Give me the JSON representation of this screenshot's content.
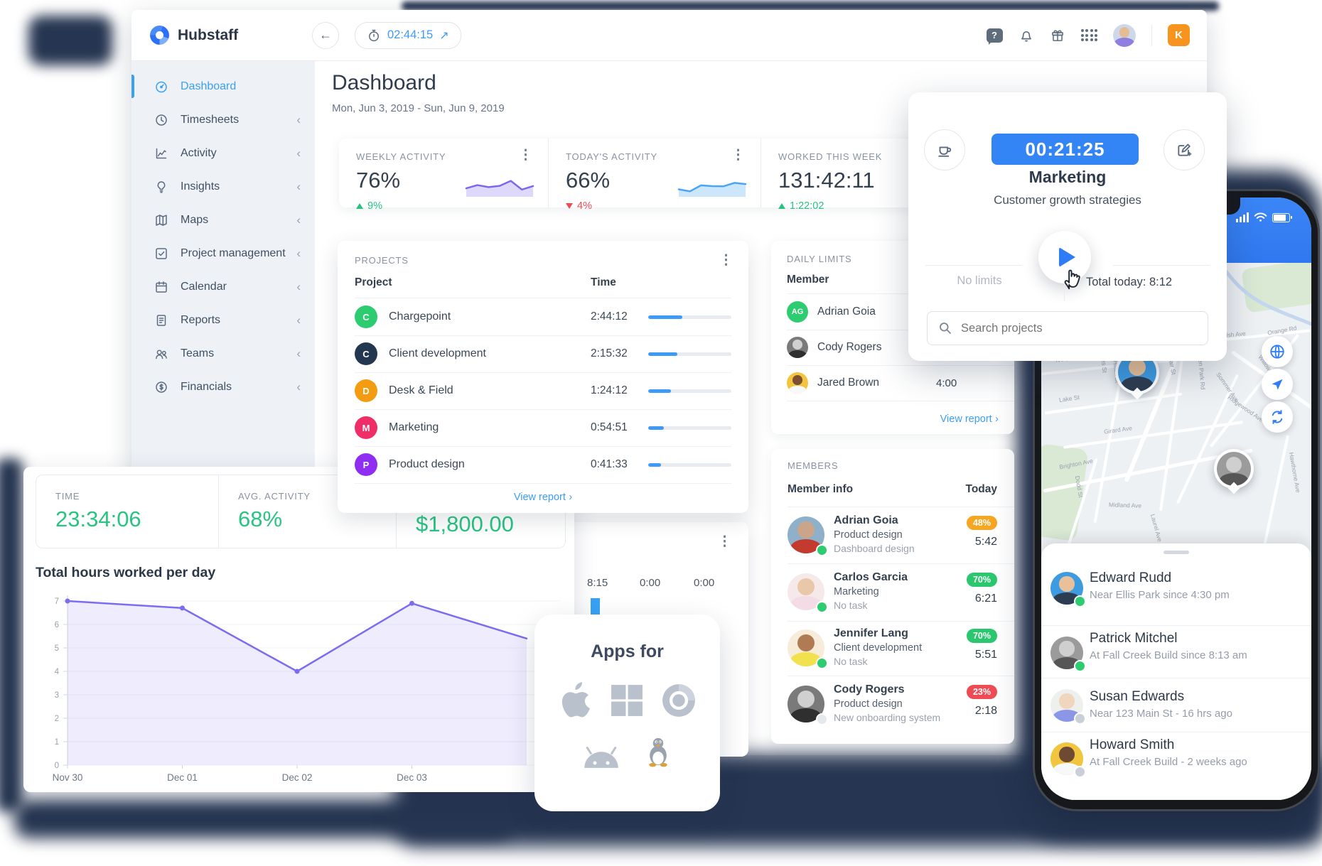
{
  "app": {
    "name": "Hubstaff"
  },
  "ui": {
    "view_report": "View report",
    "chevron_right": "›",
    "chevron_left": "‹",
    "back_arrow": "←",
    "external_arrow": "↗",
    "kebab": "⋮",
    "help_glyph": "?"
  },
  "topbar": {
    "timer": "02:44:15",
    "user_badge": "K"
  },
  "sidebar": {
    "items": [
      {
        "label": "Dashboard",
        "icon": "dashboard-icon",
        "active": true
      },
      {
        "label": "Timesheets",
        "icon": "timesheets-icon"
      },
      {
        "label": "Activity",
        "icon": "activity-icon"
      },
      {
        "label": "Insights",
        "icon": "insights-icon"
      },
      {
        "label": "Maps",
        "icon": "maps-icon"
      },
      {
        "label": "Project management",
        "icon": "project-management-icon"
      },
      {
        "label": "Calendar",
        "icon": "calendar-icon"
      },
      {
        "label": "Reports",
        "icon": "reports-icon"
      },
      {
        "label": "Teams",
        "icon": "teams-icon"
      },
      {
        "label": "Financials",
        "icon": "financials-icon"
      }
    ]
  },
  "page": {
    "title": "Dashboard",
    "date_range": "Mon, Jun 3, 2019 - Sun, Jun 9, 2019"
  },
  "stats": {
    "cards": [
      {
        "label": "WEEKLY ACTIVITY",
        "value": "76%",
        "delta": "9%",
        "direction": "up"
      },
      {
        "label": "TODAY'S ACTIVITY",
        "value": "66%",
        "delta": "4%",
        "direction": "down"
      },
      {
        "label": "WORKED THIS WEEK",
        "value": "131:42:11",
        "delta": "1:22:02",
        "direction": "up"
      }
    ]
  },
  "projects_panel": {
    "title": "PROJECTS",
    "columns": {
      "project": "Project",
      "time": "Time"
    },
    "rows": [
      {
        "name": "Chargepoint",
        "initial": "C",
        "color": "#2ecc71",
        "time": "2:44:12",
        "progress": "41%"
      },
      {
        "name": "Client development",
        "initial": "C",
        "color": "#233751",
        "time": "2:15:32",
        "progress": "35%"
      },
      {
        "name": "Desk & Field",
        "initial": "D",
        "color": "#f39c12",
        "time": "1:24:12",
        "progress": "27%"
      },
      {
        "name": "Marketing",
        "initial": "M",
        "color": "#ef2d66",
        "time": "0:54:51",
        "progress": "19%"
      },
      {
        "name": "Product design",
        "initial": "P",
        "color": "#8f2df2",
        "time": "0:41:33",
        "progress": "15%"
      }
    ]
  },
  "daily_limits": {
    "title": "DAILY LIMITS",
    "column": "Member",
    "rows": [
      {
        "name": "Adrian Goia",
        "initials": "AG",
        "avatar_color": "#2ecc71"
      },
      {
        "name": "Cody Rogers",
        "avatar": {
          "scene": "#7a7a7a",
          "skin": "#d0d0d0",
          "shirt": "#2f2f2f"
        }
      },
      {
        "name": "Jared Brown",
        "limit": "4:00",
        "avatar": {
          "scene": "#f3c43e",
          "skin": "#7d4f33",
          "shirt": "#f6f8fa"
        }
      }
    ]
  },
  "members_panel": {
    "title": "MEMBERS",
    "columns": {
      "member": "Member info",
      "today": "Today"
    },
    "rows": [
      {
        "name": "Adrian Goia",
        "project": "Product design",
        "task": "Dashboard design",
        "activity": "48%",
        "badge_color": "#f5a623",
        "time": "5:42",
        "status_color": "#2ecc71",
        "avatar": {
          "scene": "#8fb0c9",
          "skin": "#caa58a",
          "shirt": "#c23b2e"
        }
      },
      {
        "name": "Carlos Garcia",
        "project": "Marketing",
        "task": "No task",
        "activity": "70%",
        "badge_color": "#2bc76e",
        "time": "6:21",
        "status_color": "#2ecc71",
        "avatar": {
          "scene": "#f6e9e9",
          "skin": "#e8c8a8",
          "shirt": "#f3dce6"
        }
      },
      {
        "name": "Jennifer Lang",
        "project": "Client development",
        "task": "No task",
        "activity": "70%",
        "badge_color": "#2bc76e",
        "time": "5:51",
        "status_color": "#2ecc71",
        "avatar": {
          "scene": "#f7ecd9",
          "skin": "#b07b52",
          "shirt": "#f2e14e"
        }
      },
      {
        "name": "Cody Rogers",
        "project": "Product design",
        "task": "New onboarding system",
        "activity": "23%",
        "badge_color": "#ee4b55",
        "time": "2:18",
        "status_color": "#e4e9ee",
        "avatar": {
          "scene": "#7a7a7a",
          "skin": "#d0d0d0",
          "shirt": "#2f2f2f"
        }
      }
    ]
  },
  "mini_panel": {
    "values": [
      "8:15",
      "0:00",
      "0:00"
    ]
  },
  "timer_popup": {
    "time": "00:21:25",
    "project": "Marketing",
    "task": "Customer growth strategies",
    "left_note": "No limits",
    "right_note": "Total today: 8:12",
    "search_placeholder": "Search projects"
  },
  "summary_card": {
    "time_label": "TIME",
    "time_value": "23:34:06",
    "activity_label": "AVG. ACTIVITY",
    "activity_value": "68%",
    "amount_value": "$1,800.00"
  },
  "apps_card": {
    "title": "Apps for",
    "platforms": [
      "apple",
      "windows",
      "chrome",
      "android",
      "linux"
    ]
  },
  "phone": {
    "people": [
      {
        "name": "Edward Rudd",
        "status": "Near Ellis Park since 4:30 pm",
        "status_color": "#2ecc71",
        "avatar": {
          "scene": "#3f9be0",
          "skin": "#e8c09a",
          "shirt": "#2c3d52"
        }
      },
      {
        "name": "Patrick Mitchel",
        "status": "At Fall Creek Build since 8:13 am",
        "status_color": "#2ecc71",
        "avatar": {
          "scene": "#9b9b9b",
          "skin": "#cfcfcf",
          "shirt": "#565656"
        }
      },
      {
        "name": "Susan Edwards",
        "status": "Near 123 Main St - 16 hrs ago",
        "status_color": "#c8cfd8",
        "avatar": {
          "scene": "#eef0ee",
          "skin": "#f0d6bc",
          "shirt": "#8b97e6"
        }
      },
      {
        "name": "Howard Smith",
        "status": "At Fall Creek Build - 2 weeks ago",
        "status_color": "#c8cfd8",
        "avatar": {
          "scene": "#f0c53f",
          "skin": "#6f4a33",
          "shirt": "#f6f8fa"
        }
      }
    ],
    "map": {
      "streets": [
        "Kearney St",
        "Long St",
        "N Park St",
        "Lake St",
        "Girard Ave",
        "Brighton Ave",
        "Thomas Blvd",
        "Walsh Ave",
        "Orange Rd",
        "Willow St",
        "Ridgewood Ave",
        "Sommer Ave",
        "Glen Park Rd",
        "Fair St",
        "Hilton St",
        "Charles St",
        "Dodd St",
        "Midland Ave",
        "Laurel Ave",
        "Hawthorne Ave"
      ]
    }
  },
  "chart_data": [
    {
      "id": "hours-per-day",
      "type": "area",
      "title": "Total hours worked per day",
      "categories": [
        "Nov 30",
        "Dec 01",
        "Dec 02",
        "Dec 03",
        ""
      ],
      "values": [
        7.0,
        6.7,
        4.0,
        6.9,
        5.4
      ],
      "ylim": [
        0,
        7
      ],
      "yticks": [
        0,
        1,
        2,
        3,
        4,
        5,
        6,
        7
      ],
      "grid": true,
      "legend": false,
      "line_color": "#7b6df0",
      "fill_color": "rgba(123,109,240,0.13)"
    },
    {
      "id": "spark-weekly",
      "type": "area",
      "values": [
        3.4,
        4.7,
        3.9,
        4.4,
        6.4,
        2.9,
        4.3
      ],
      "ylim": [
        0,
        8
      ],
      "line_color": "#7b68ee",
      "fill_color": "rgba(123,104,238,0.25)"
    },
    {
      "id": "spark-today",
      "type": "area",
      "values": [
        3.0,
        2.2,
        4.6,
        4.3,
        4.2,
        5.6,
        5.1
      ],
      "ylim": [
        0,
        8
      ],
      "line_color": "#49a5f6",
      "fill_color": "rgba(73,165,246,0.28)"
    }
  ],
  "colors": {
    "accent_blue": "#3989f5",
    "green": "#27c281",
    "red": "#ee4b55",
    "orange_badge": "#f5a623",
    "purple": "#7b6df0",
    "k_badge": "#f7941e",
    "sidebar_active": "#3aa0f4",
    "shadow_navy": "#263551"
  }
}
